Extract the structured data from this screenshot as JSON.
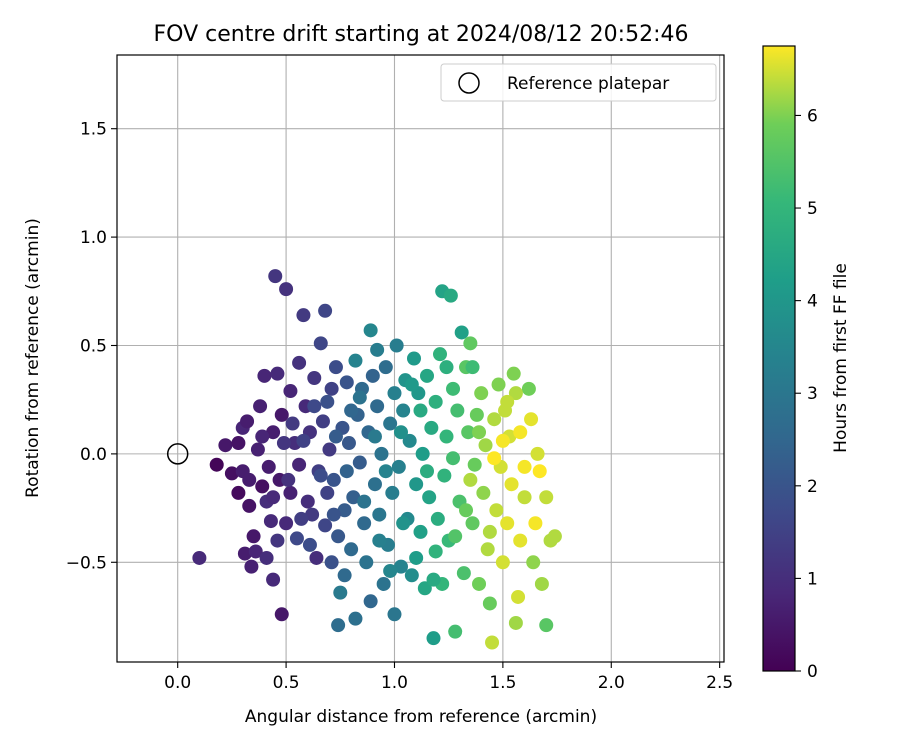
{
  "chart_data": {
    "type": "scatter",
    "title": "FOV centre drift starting at 2024/08/12 20:52:46",
    "xlabel": "Angular distance from reference (arcmin)",
    "ylabel": "Rotation from reference (arcmin)",
    "xlim": [
      -0.28,
      2.52
    ],
    "ylim": [
      -0.96,
      1.84
    ],
    "x_ticks": [
      "0.0",
      "0.5",
      "1.0",
      "1.5",
      "2.0",
      "2.5"
    ],
    "y_ticks": [
      "−0.5",
      "0.0",
      "0.5",
      "1.0",
      "1.5"
    ],
    "grid": true,
    "legend": {
      "placement": "top-right",
      "entries": [
        "Reference platepar"
      ]
    },
    "reference_point": {
      "x": 0.0,
      "y": 0.0
    },
    "colorbar": {
      "label": "Hours from first FF file",
      "range": [
        0,
        6.75
      ],
      "ticks": [
        "0",
        "1",
        "2",
        "3",
        "4",
        "5",
        "6"
      ],
      "colormap": "viridis"
    },
    "series": [
      {
        "note": "time-coloured drift points (x, y, hours)",
        "points": [
          [
            0.1,
            -0.48,
            0.9
          ],
          [
            0.18,
            -0.05,
            0.1
          ],
          [
            0.22,
            0.04,
            0.5
          ],
          [
            0.25,
            -0.09,
            0.3
          ],
          [
            0.28,
            0.05,
            0.4
          ],
          [
            0.28,
            -0.18,
            0.2
          ],
          [
            0.3,
            -0.08,
            0.6
          ],
          [
            0.3,
            0.12,
            0.8
          ],
          [
            0.31,
            -0.46,
            0.6
          ],
          [
            0.32,
            0.15,
            0.6
          ],
          [
            0.33,
            -0.24,
            0.4
          ],
          [
            0.34,
            -0.52,
            0.7
          ],
          [
            0.35,
            -0.38,
            0.5
          ],
          [
            0.36,
            -0.45,
            0.8
          ],
          [
            0.38,
            0.22,
            0.7
          ],
          [
            0.39,
            -0.15,
            0.3
          ],
          [
            0.4,
            0.36,
            0.8
          ],
          [
            0.41,
            -0.48,
            1.0
          ],
          [
            0.42,
            -0.06,
            0.6
          ],
          [
            0.43,
            -0.31,
            0.9
          ],
          [
            0.44,
            0.1,
            0.6
          ],
          [
            0.44,
            -0.58,
            0.9
          ],
          [
            0.45,
            0.82,
            1.2
          ],
          [
            0.46,
            0.37,
            0.9
          ],
          [
            0.47,
            -0.12,
            0.5
          ],
          [
            0.48,
            -0.74,
            0.5
          ],
          [
            0.48,
            0.18,
            0.5
          ],
          [
            0.5,
            0.76,
            1.1
          ],
          [
            0.5,
            -0.32,
            0.9
          ],
          [
            0.52,
            -0.18,
            0.7
          ],
          [
            0.52,
            0.29,
            0.8
          ],
          [
            0.54,
            0.05,
            1.0
          ],
          [
            0.55,
            -0.39,
            1.7
          ],
          [
            0.56,
            0.42,
            1.1
          ],
          [
            0.56,
            -0.05,
            0.8
          ],
          [
            0.58,
            0.64,
            1.3
          ],
          [
            0.59,
            0.22,
            0.9
          ],
          [
            0.6,
            -0.22,
            1.0
          ],
          [
            0.61,
            0.1,
            1.1
          ],
          [
            0.62,
            -0.28,
            1.3
          ],
          [
            0.63,
            0.35,
            1.2
          ],
          [
            0.64,
            -0.48,
            1.0
          ],
          [
            0.65,
            -0.08,
            1.4
          ],
          [
            0.66,
            0.51,
            1.6
          ],
          [
            0.67,
            0.15,
            1.4
          ],
          [
            0.68,
            -0.33,
            1.6
          ],
          [
            0.68,
            0.66,
            1.6
          ],
          [
            0.69,
            -0.18,
            1.5
          ],
          [
            0.7,
            0.02,
            1.3
          ],
          [
            0.71,
            -0.5,
            1.9
          ],
          [
            0.71,
            0.3,
            1.5
          ],
          [
            0.72,
            -0.12,
            2.0
          ],
          [
            0.73,
            0.4,
            1.8
          ],
          [
            0.74,
            -0.38,
            2.1
          ],
          [
            0.74,
            -0.79,
            2.7
          ],
          [
            0.75,
            -0.64,
            3.1
          ],
          [
            0.76,
            0.12,
            2.0
          ],
          [
            0.77,
            -0.26,
            2.2
          ],
          [
            0.78,
            0.33,
            2.0
          ],
          [
            0.79,
            0.05,
            2.1
          ],
          [
            0.8,
            -0.44,
            2.6
          ],
          [
            0.81,
            -0.2,
            2.3
          ],
          [
            0.82,
            -0.76,
            2.8
          ],
          [
            0.82,
            0.43,
            3.4
          ],
          [
            0.83,
            0.18,
            2.4
          ],
          [
            0.84,
            -0.04,
            2.2
          ],
          [
            0.85,
            0.3,
            2.6
          ],
          [
            0.86,
            -0.32,
            2.6
          ],
          [
            0.87,
            -0.5,
            2.9
          ],
          [
            0.88,
            0.1,
            2.5
          ],
          [
            0.89,
            -0.68,
            2.5
          ],
          [
            0.89,
            0.57,
            3.5
          ],
          [
            0.9,
            0.36,
            2.4
          ],
          [
            0.91,
            -0.14,
            2.8
          ],
          [
            0.92,
            0.22,
            2.6
          ],
          [
            0.93,
            -0.28,
            3.0
          ],
          [
            0.94,
            0.0,
            2.9
          ],
          [
            0.95,
            -0.6,
            2.9
          ],
          [
            0.96,
            0.4,
            2.7
          ],
          [
            0.97,
            -0.42,
            3.2
          ],
          [
            0.98,
            0.14,
            3.0
          ],
          [
            0.99,
            -0.18,
            3.2
          ],
          [
            1.0,
            0.28,
            3.3
          ],
          [
            1.0,
            -0.74,
            3.0
          ],
          [
            1.01,
            0.5,
            3.2
          ],
          [
            1.02,
            -0.06,
            3.3
          ],
          [
            1.03,
            -0.52,
            3.4
          ],
          [
            1.04,
            0.2,
            3.4
          ],
          [
            1.05,
            0.34,
            3.9
          ],
          [
            1.06,
            -0.3,
            3.6
          ],
          [
            1.07,
            0.06,
            3.6
          ],
          [
            1.08,
            -0.56,
            3.7
          ],
          [
            1.09,
            0.44,
            4.1
          ],
          [
            1.1,
            -0.14,
            4.0
          ],
          [
            1.11,
            0.28,
            4.0
          ],
          [
            1.12,
            -0.36,
            4.3
          ],
          [
            1.13,
            0.0,
            4.2
          ],
          [
            1.14,
            -0.62,
            4.5
          ],
          [
            1.15,
            0.36,
            4.5
          ],
          [
            1.16,
            -0.2,
            4.4
          ],
          [
            1.17,
            0.12,
            4.6
          ],
          [
            1.18,
            -0.85,
            4.2
          ],
          [
            1.19,
            0.24,
            4.8
          ],
          [
            1.2,
            -0.3,
            4.7
          ],
          [
            1.21,
            0.46,
            4.9
          ],
          [
            1.22,
            0.75,
            4.4
          ],
          [
            1.23,
            -0.1,
            4.9
          ],
          [
            1.24,
            0.08,
            5.0
          ],
          [
            1.25,
            -0.4,
            5.1
          ],
          [
            1.26,
            0.73,
            4.6
          ],
          [
            1.27,
            0.3,
            5.2
          ],
          [
            1.28,
            -0.82,
            5.3
          ],
          [
            1.29,
            0.2,
            5.3
          ],
          [
            1.3,
            -0.22,
            5.4
          ],
          [
            1.31,
            0.56,
            4.3
          ],
          [
            1.32,
            -0.55,
            5.4
          ],
          [
            1.33,
            0.4,
            5.6
          ],
          [
            1.34,
            0.1,
            5.6
          ],
          [
            1.35,
            0.51,
            5.7
          ],
          [
            1.36,
            -0.32,
            5.7
          ],
          [
            1.37,
            -0.05,
            5.8
          ],
          [
            1.38,
            0.18,
            5.8
          ],
          [
            1.39,
            -0.6,
            5.9
          ],
          [
            1.4,
            0.28,
            6.0
          ],
          [
            1.41,
            -0.18,
            6.1
          ],
          [
            1.42,
            0.04,
            6.2
          ],
          [
            1.43,
            -0.44,
            6.3
          ],
          [
            1.44,
            -0.69,
            5.8
          ],
          [
            1.45,
            -0.87,
            6.4
          ],
          [
            1.46,
            0.16,
            6.3
          ],
          [
            1.47,
            -0.26,
            6.4
          ],
          [
            1.48,
            0.32,
            6.0
          ],
          [
            1.49,
            -0.06,
            6.5
          ],
          [
            1.5,
            -0.5,
            6.5
          ],
          [
            1.51,
            0.2,
            6.4
          ],
          [
            1.52,
            -0.32,
            6.6
          ],
          [
            1.53,
            0.08,
            6.5
          ],
          [
            1.54,
            -0.14,
            6.6
          ],
          [
            1.55,
            0.37,
            6.0
          ],
          [
            1.56,
            -0.78,
            6.2
          ],
          [
            1.57,
            -0.66,
            6.5
          ],
          [
            1.58,
            -0.4,
            6.6
          ],
          [
            1.6,
            -0.2,
            6.4
          ],
          [
            1.62,
            0.3,
            5.9
          ],
          [
            1.64,
            -0.5,
            6.1
          ],
          [
            1.66,
            0.0,
            6.5
          ],
          [
            1.68,
            -0.6,
            6.2
          ],
          [
            1.7,
            -0.2,
            6.4
          ],
          [
            1.72,
            -0.4,
            6.3
          ],
          [
            1.74,
            -0.38,
            6.3
          ],
          [
            1.7,
            -0.79,
            5.6
          ],
          [
            1.56,
            0.28,
            6.3
          ],
          [
            1.58,
            0.1,
            6.7
          ],
          [
            1.46,
            -0.02,
            6.8
          ],
          [
            1.5,
            0.06,
            6.7
          ],
          [
            1.35,
            -0.12,
            6.3
          ],
          [
            1.28,
            -0.38,
            5.5
          ],
          [
            1.19,
            -0.45,
            4.9
          ],
          [
            1.12,
            0.2,
            4.6
          ],
          [
            1.08,
            0.32,
            4.1
          ],
          [
            0.96,
            -0.08,
            3.4
          ],
          [
            0.91,
            0.08,
            3.1
          ],
          [
            0.86,
            -0.22,
            2.9
          ],
          [
            0.78,
            -0.08,
            2.4
          ],
          [
            0.73,
            0.08,
            2.2
          ],
          [
            0.63,
            0.22,
            1.7
          ],
          [
            0.57,
            -0.3,
            1.4
          ],
          [
            0.49,
            0.05,
            1.2
          ],
          [
            0.41,
            -0.22,
            1.0
          ],
          [
            0.37,
            0.02,
            0.7
          ],
          [
            0.33,
            -0.12,
            0.6
          ],
          [
            0.46,
            -0.4,
            1.2
          ],
          [
            0.53,
            0.14,
            1.3
          ],
          [
            0.61,
            -0.42,
            1.8
          ],
          [
            0.69,
            0.24,
            1.9
          ],
          [
            0.77,
            -0.56,
            2.6
          ],
          [
            0.84,
            0.26,
            2.9
          ],
          [
            0.93,
            -0.4,
            3.3
          ],
          [
            1.03,
            0.1,
            3.8
          ],
          [
            1.15,
            -0.08,
            4.7
          ],
          [
            1.22,
            -0.6,
            5.0
          ],
          [
            1.27,
            -0.02,
            5.3
          ],
          [
            1.33,
            -0.26,
            5.8
          ],
          [
            1.39,
            0.1,
            6.0
          ],
          [
            1.44,
            -0.36,
            6.3
          ],
          [
            1.52,
            0.24,
            6.4
          ],
          [
            1.6,
            -0.06,
            6.7
          ],
          [
            1.63,
            0.16,
            6.6
          ],
          [
            1.65,
            -0.32,
            6.7
          ],
          [
            1.67,
            -0.08,
            6.8
          ],
          [
            1.36,
            0.4,
            5.2
          ],
          [
            1.24,
            0.4,
            4.8
          ],
          [
            1.18,
            -0.58,
            4.6
          ],
          [
            1.1,
            -0.48,
            4.2
          ],
          [
            1.04,
            -0.32,
            3.9
          ],
          [
            0.98,
            -0.54,
            3.5
          ],
          [
            0.92,
            0.48,
            3.2
          ],
          [
            0.8,
            0.2,
            2.5
          ],
          [
            0.72,
            -0.28,
            2.0
          ],
          [
            0.66,
            -0.1,
            1.8
          ],
          [
            0.58,
            0.06,
            1.5
          ],
          [
            0.51,
            -0.12,
            1.1
          ],
          [
            0.44,
            -0.2,
            0.9
          ],
          [
            0.39,
            0.08,
            0.8
          ]
        ]
      }
    ]
  }
}
